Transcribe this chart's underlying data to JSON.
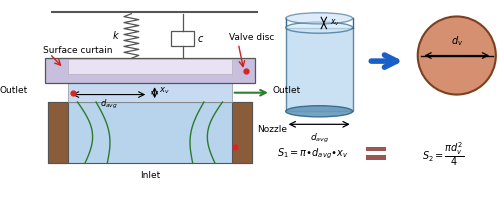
{
  "fig_width": 5.0,
  "fig_height": 2.04,
  "dpi": 100,
  "bg_color": "#ffffff",
  "colors": {
    "spring": "#555555",
    "damper_box": "#ffffff",
    "damper_edge": "#555555",
    "disc_fill": "#c8bedd",
    "disc_inner": "#e8e2f4",
    "nozzle_body": "#b8d4ec",
    "nozzle_wall": "#8b5c3a",
    "gap_fluid": "#c0d8f0",
    "green_lines": "#2d7a2d",
    "red_dot": "#dd2222",
    "outlet_arrow": "#2d8030",
    "topbar": "#555555",
    "cyl_body": "#aaccee",
    "cyl_top_ell": "#88bbdd",
    "cyl_bot_ell": "#6699bb",
    "cyl_edge": "#336688",
    "blue_arrow": "#1a5fc8",
    "circle_fill": "#d49070",
    "circle_edge": "#7a4020",
    "eq_rect": "#9b5555",
    "black": "#000000",
    "surface_curtain_arrow": "#cc2222",
    "valve_disc_arrow": "#cc2222"
  },
  "texts": {
    "k": "k",
    "c": "c",
    "valve_disc": "Valve disc",
    "surface_curtain": "Surface curtain",
    "outlet_left": "Outlet",
    "outlet_right": "Outlet",
    "nozzle": "Nozzle",
    "inlet": "Inlet",
    "d_avg_gap": "$d_{avg}$",
    "xv_gap": "$x_v$",
    "d_avg_cyl": "$d_{avg}$",
    "xv_cyl": "$x_v$",
    "dv_circle": "$d_v$",
    "eq1": "$S_1 = \\pi{\\bullet}d_{avg}{\\bullet}x_v$",
    "eq2": "$S_2 = \\dfrac{\\pi d_v^2}{4}$"
  }
}
